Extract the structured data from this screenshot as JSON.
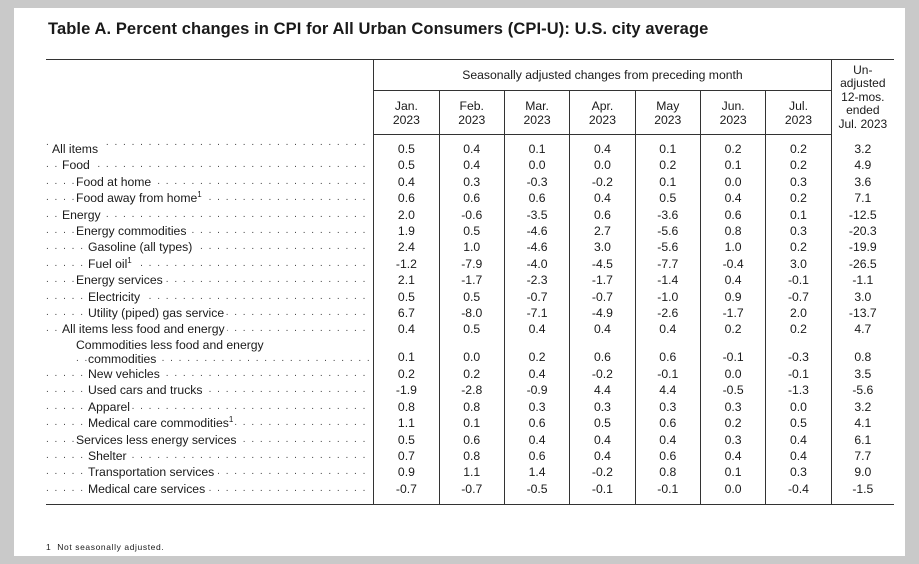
{
  "title": "Table A. Percent changes in CPI for All Urban Consumers (CPI-U): U.S. city average",
  "header": {
    "group_label": "Seasonally adjusted changes from preceding month",
    "unadjusted_label": [
      "Un-",
      "adjusted",
      "12-mos.",
      "ended",
      "Jul. 2023"
    ],
    "months": [
      {
        "month": "Jan.",
        "year": "2023"
      },
      {
        "month": "Feb.",
        "year": "2023"
      },
      {
        "month": "Mar.",
        "year": "2023"
      },
      {
        "month": "Apr.",
        "year": "2023"
      },
      {
        "month": "May",
        "year": "2023"
      },
      {
        "month": "Jun.",
        "year": "2023"
      },
      {
        "month": "Jul.",
        "year": "2023"
      }
    ]
  },
  "rows": [
    {
      "label": "All items",
      "indent": 0,
      "values": [
        "0.5",
        "0.4",
        "0.1",
        "0.4",
        "0.1",
        "0.2",
        "0.2",
        "3.2"
      ]
    },
    {
      "label": "Food",
      "indent": 1,
      "values": [
        "0.5",
        "0.4",
        "0.0",
        "0.0",
        "0.2",
        "0.1",
        "0.2",
        "4.9"
      ]
    },
    {
      "label": "Food at home",
      "indent": 2,
      "values": [
        "0.4",
        "0.3",
        "-0.3",
        "-0.2",
        "0.1",
        "0.0",
        "0.3",
        "3.6"
      ]
    },
    {
      "label": "Food away from home",
      "sup": "1",
      "indent": 2,
      "values": [
        "0.6",
        "0.6",
        "0.6",
        "0.4",
        "0.5",
        "0.4",
        "0.2",
        "7.1"
      ]
    },
    {
      "label": "Energy",
      "indent": 1,
      "values": [
        "2.0",
        "-0.6",
        "-3.5",
        "0.6",
        "-3.6",
        "0.6",
        "0.1",
        "-12.5"
      ]
    },
    {
      "label": "Energy commodities",
      "indent": 2,
      "values": [
        "1.9",
        "0.5",
        "-4.6",
        "2.7",
        "-5.6",
        "0.8",
        "0.3",
        "-20.3"
      ]
    },
    {
      "label": "Gasoline (all types)",
      "indent": 3,
      "values": [
        "2.4",
        "1.0",
        "-4.6",
        "3.0",
        "-5.6",
        "1.0",
        "0.2",
        "-19.9"
      ]
    },
    {
      "label": "Fuel oil",
      "sup": "1",
      "indent": 3,
      "values": [
        "-1.2",
        "-7.9",
        "-4.0",
        "-4.5",
        "-7.7",
        "-0.4",
        "3.0",
        "-26.5"
      ]
    },
    {
      "label": "Energy services",
      "indent": 2,
      "values": [
        "2.1",
        "-1.7",
        "-2.3",
        "-1.7",
        "-1.4",
        "0.4",
        "-0.1",
        "-1.1"
      ]
    },
    {
      "label": "Electricity",
      "indent": 3,
      "values": [
        "0.5",
        "0.5",
        "-0.7",
        "-0.7",
        "-1.0",
        "0.9",
        "-0.7",
        "3.0"
      ]
    },
    {
      "label": "Utility (piped) gas service",
      "indent": 3,
      "values": [
        "6.7",
        "-8.0",
        "-7.1",
        "-4.9",
        "-2.6",
        "-1.7",
        "2.0",
        "-13.7"
      ]
    },
    {
      "label": "All items less food and energy",
      "indent": 1,
      "values": [
        "0.4",
        "0.5",
        "0.4",
        "0.4",
        "0.4",
        "0.2",
        "0.2",
        "4.7"
      ]
    },
    {
      "label": "Commodities less food and energy",
      "label2": "commodities",
      "indent": 2,
      "values": [
        "0.1",
        "0.0",
        "0.2",
        "0.6",
        "0.6",
        "-0.1",
        "-0.3",
        "0.8"
      ]
    },
    {
      "label": "New vehicles",
      "indent": 3,
      "values": [
        "0.2",
        "0.2",
        "0.4",
        "-0.2",
        "-0.1",
        "0.0",
        "-0.1",
        "3.5"
      ]
    },
    {
      "label": "Used cars and trucks",
      "indent": 3,
      "values": [
        "-1.9",
        "-2.8",
        "-0.9",
        "4.4",
        "4.4",
        "-0.5",
        "-1.3",
        "-5.6"
      ]
    },
    {
      "label": "Apparel",
      "indent": 3,
      "values": [
        "0.8",
        "0.8",
        "0.3",
        "0.3",
        "0.3",
        "0.3",
        "0.0",
        "3.2"
      ]
    },
    {
      "label": "Medical care commodities",
      "sup": "1",
      "indent": 3,
      "values": [
        "1.1",
        "0.1",
        "0.6",
        "0.5",
        "0.6",
        "0.2",
        "0.5",
        "4.1"
      ]
    },
    {
      "label": "Services less energy services",
      "indent": 2,
      "values": [
        "0.5",
        "0.6",
        "0.4",
        "0.4",
        "0.4",
        "0.3",
        "0.4",
        "6.1"
      ]
    },
    {
      "label": "Shelter",
      "indent": 3,
      "values": [
        "0.7",
        "0.8",
        "0.6",
        "0.4",
        "0.6",
        "0.4",
        "0.4",
        "7.7"
      ]
    },
    {
      "label": "Transportation services",
      "indent": 3,
      "values": [
        "0.9",
        "1.1",
        "1.4",
        "-0.2",
        "0.8",
        "0.1",
        "0.3",
        "9.0"
      ]
    },
    {
      "label": "Medical care services",
      "indent": 3,
      "values": [
        "-0.7",
        "-0.7",
        "-0.5",
        "-0.1",
        "-0.1",
        "0.0",
        "-0.4",
        "-1.5"
      ]
    }
  ],
  "footnote": {
    "marker": "1",
    "text": "Not seasonally adjusted."
  }
}
